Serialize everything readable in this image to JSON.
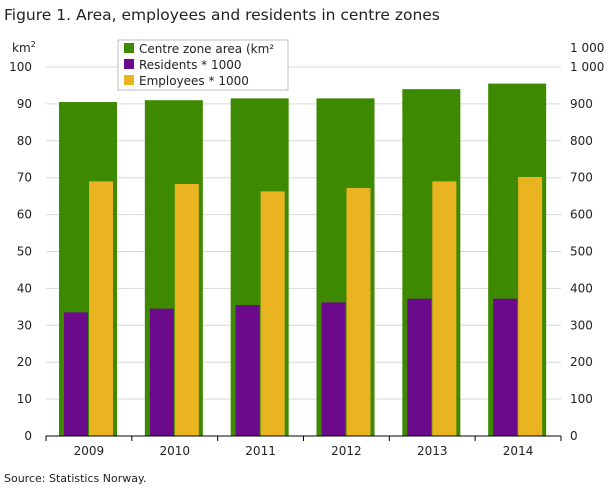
{
  "title": "Figure 1. Area, employees and residents in centre zones",
  "source": "Source: Statistics Norway.",
  "chart_data": {
    "type": "bar",
    "categories": [
      "2009",
      "2010",
      "2011",
      "2012",
      "2013",
      "2014"
    ],
    "left_axis": {
      "unit_base": "km",
      "unit_sup": "2",
      "ylim": [
        0,
        100
      ],
      "ticks": [
        0,
        10,
        20,
        30,
        40,
        50,
        60,
        70,
        80,
        90,
        100
      ],
      "tick_labels": [
        "0",
        "10",
        "20",
        "30",
        "40",
        "50",
        "60",
        "70",
        "80",
        "90",
        "100"
      ]
    },
    "right_axis": {
      "unit_label": "1 000",
      "ylim": [
        0,
        1000
      ],
      "ticks": [
        0,
        100,
        200,
        300,
        400,
        500,
        600,
        700,
        800,
        900,
        1000
      ],
      "tick_labels": [
        "0",
        "100",
        "200",
        "300",
        "400",
        "500",
        "600",
        "700",
        "800",
        "900",
        "1 000"
      ]
    },
    "series": [
      {
        "name": "Centre zone area (km²",
        "axis": "left",
        "color": "#3d8a00",
        "values": [
          90.5,
          91.0,
          91.5,
          91.5,
          94.0,
          95.5
        ]
      },
      {
        "name": "Residents * 1000",
        "axis": "right",
        "color": "#6b0a8a",
        "values": [
          335,
          345,
          355,
          362,
          372,
          372
        ]
      },
      {
        "name": "Employees * 1000",
        "axis": "right",
        "color": "#eab421",
        "values": [
          690,
          683,
          663,
          672,
          690,
          702
        ]
      }
    ],
    "grid": true,
    "legend_position": "top-left"
  }
}
